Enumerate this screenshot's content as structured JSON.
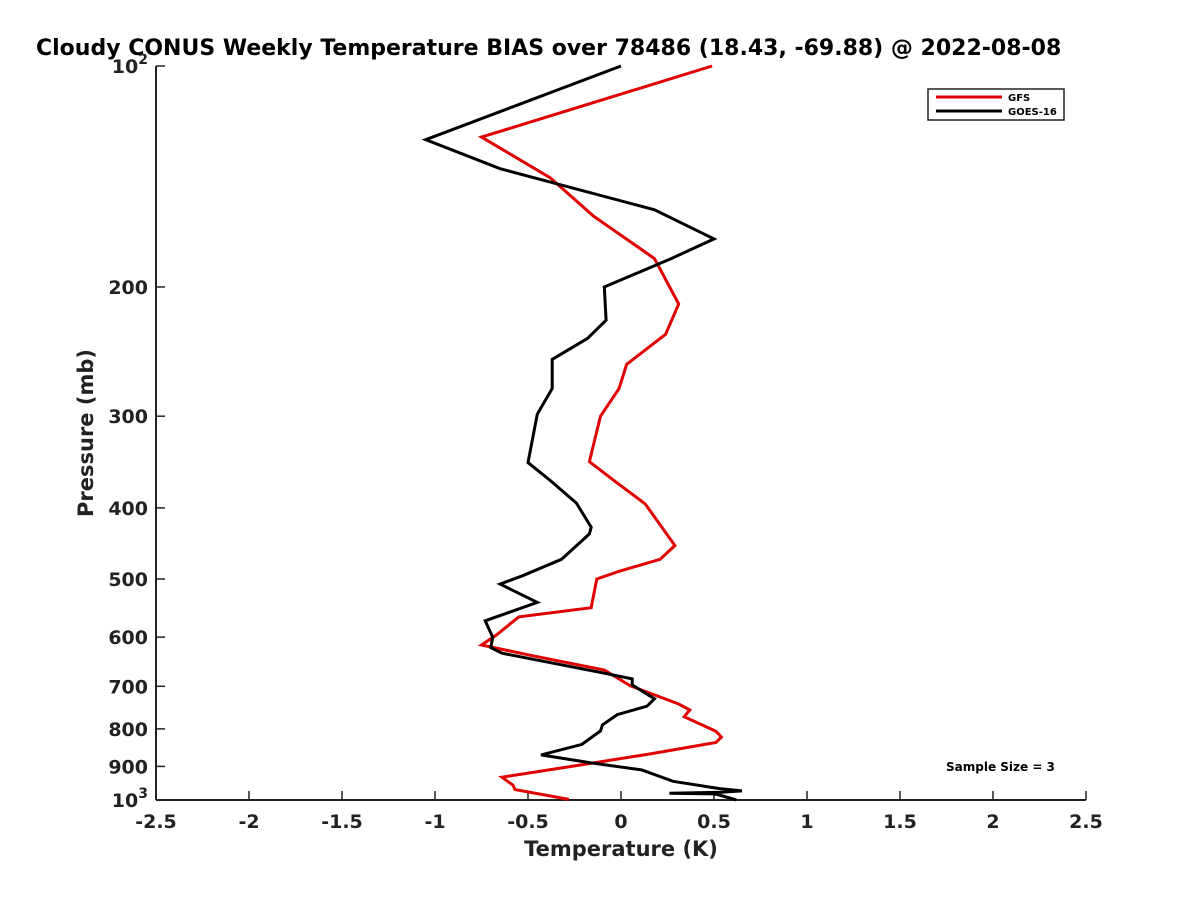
{
  "chart_data": {
    "type": "line",
    "title": "Cloudy CONUS Weekly Temperature BIAS over 78486 (18.43, -69.88) @ 2022-08-08",
    "xlabel": "Temperature (K)",
    "ylabel": "Pressure (mb)",
    "xlim": [
      -2.5,
      2.5
    ],
    "ylim": [
      100,
      1000
    ],
    "y_scale": "log",
    "y_reversed": true,
    "grid": false,
    "x_ticks": [
      "-2.5",
      "-2",
      "-1.5",
      "-1",
      "-0.5",
      "0",
      "0.5",
      "1",
      "1.5",
      "2",
      "2.5"
    ],
    "y_ticks": [
      {
        "value": 100,
        "base": "10",
        "exp": "2"
      },
      {
        "value": 200,
        "label": "200"
      },
      {
        "value": 300,
        "label": "300"
      },
      {
        "value": 400,
        "label": "400"
      },
      {
        "value": 500,
        "label": "500"
      },
      {
        "value": 600,
        "label": "600"
      },
      {
        "value": 700,
        "label": "700"
      },
      {
        "value": 800,
        "label": "800"
      },
      {
        "value": 900,
        "label": "900"
      },
      {
        "value": 1000,
        "base": "10",
        "exp": "3"
      }
    ],
    "legend_position": "top-right",
    "series": [
      {
        "name": "GFS",
        "color": "#e00000",
        "points": [
          {
            "x": 0.49,
            "p": 100
          },
          {
            "x": -0.75,
            "p": 125
          },
          {
            "x": -0.38,
            "p": 142
          },
          {
            "x": -0.15,
            "p": 160
          },
          {
            "x": 0.18,
            "p": 183
          },
          {
            "x": 0.31,
            "p": 211
          },
          {
            "x": 0.24,
            "p": 232
          },
          {
            "x": 0.03,
            "p": 255
          },
          {
            "x": -0.01,
            "p": 275
          },
          {
            "x": -0.11,
            "p": 300
          },
          {
            "x": -0.17,
            "p": 346
          },
          {
            "x": -0.02,
            "p": 370
          },
          {
            "x": 0.13,
            "p": 395
          },
          {
            "x": 0.29,
            "p": 450
          },
          {
            "x": 0.21,
            "p": 470
          },
          {
            "x": -0.01,
            "p": 488
          },
          {
            "x": -0.13,
            "p": 500
          },
          {
            "x": -0.16,
            "p": 547
          },
          {
            "x": -0.55,
            "p": 563
          },
          {
            "x": -0.67,
            "p": 596
          },
          {
            "x": -0.75,
            "p": 615
          },
          {
            "x": -0.49,
            "p": 635
          },
          {
            "x": -0.09,
            "p": 665
          },
          {
            "x": 0.05,
            "p": 699
          },
          {
            "x": 0.31,
            "p": 740
          },
          {
            "x": 0.37,
            "p": 754
          },
          {
            "x": 0.34,
            "p": 770
          },
          {
            "x": 0.51,
            "p": 806
          },
          {
            "x": 0.54,
            "p": 821
          },
          {
            "x": 0.51,
            "p": 835
          },
          {
            "x": 0.15,
            "p": 866
          },
          {
            "x": -0.18,
            "p": 893
          },
          {
            "x": -0.64,
            "p": 931
          },
          {
            "x": -0.58,
            "p": 955
          },
          {
            "x": -0.57,
            "p": 968
          },
          {
            "x": -0.28,
            "p": 998
          }
        ]
      },
      {
        "name": "GOES-16",
        "color": "#000000",
        "points": [
          {
            "x": 0.0,
            "p": 100
          },
          {
            "x": -1.05,
            "p": 126
          },
          {
            "x": -0.65,
            "p": 138
          },
          {
            "x": 0.18,
            "p": 157
          },
          {
            "x": 0.5,
            "p": 172
          },
          {
            "x": 0.27,
            "p": 183
          },
          {
            "x": -0.09,
            "p": 200
          },
          {
            "x": -0.08,
            "p": 222
          },
          {
            "x": -0.18,
            "p": 235
          },
          {
            "x": -0.37,
            "p": 251
          },
          {
            "x": -0.37,
            "p": 275
          },
          {
            "x": -0.45,
            "p": 298
          },
          {
            "x": -0.5,
            "p": 347
          },
          {
            "x": -0.38,
            "p": 367
          },
          {
            "x": -0.24,
            "p": 394
          },
          {
            "x": -0.16,
            "p": 425
          },
          {
            "x": -0.17,
            "p": 434
          },
          {
            "x": -0.32,
            "p": 470
          },
          {
            "x": -0.53,
            "p": 495
          },
          {
            "x": -0.65,
            "p": 508
          },
          {
            "x": -0.45,
            "p": 538
          },
          {
            "x": -0.73,
            "p": 570
          },
          {
            "x": -0.69,
            "p": 600
          },
          {
            "x": -0.7,
            "p": 620
          },
          {
            "x": -0.64,
            "p": 631
          },
          {
            "x": -0.1,
            "p": 671
          },
          {
            "x": 0.06,
            "p": 684
          },
          {
            "x": 0.06,
            "p": 697
          },
          {
            "x": 0.18,
            "p": 728
          },
          {
            "x": 0.14,
            "p": 745
          },
          {
            "x": -0.02,
            "p": 765
          },
          {
            "x": -0.1,
            "p": 790
          },
          {
            "x": -0.11,
            "p": 805
          },
          {
            "x": -0.21,
            "p": 840
          },
          {
            "x": -0.43,
            "p": 868
          },
          {
            "x": -0.16,
            "p": 890
          },
          {
            "x": 0.11,
            "p": 910
          },
          {
            "x": 0.28,
            "p": 943
          },
          {
            "x": 0.53,
            "p": 965
          },
          {
            "x": 0.65,
            "p": 972
          },
          {
            "x": 0.54,
            "p": 976
          },
          {
            "x": 0.26,
            "p": 979
          },
          {
            "x": 0.5,
            "p": 981
          },
          {
            "x": 0.52,
            "p": 983
          },
          {
            "x": 0.62,
            "p": 1000
          }
        ]
      }
    ],
    "annotation": "Sample Size = 3"
  }
}
